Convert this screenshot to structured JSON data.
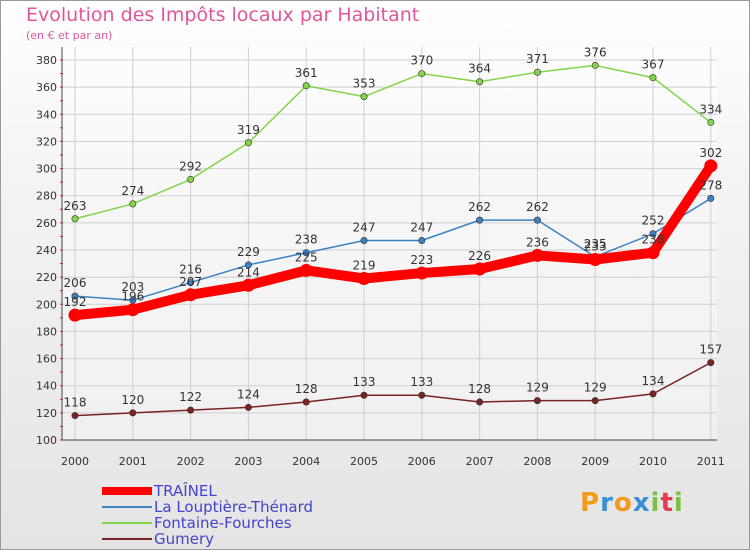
{
  "header": {
    "title": "Evolution des Impôts locaux par Habitant",
    "subtitle": "(en € et par an)"
  },
  "logo": {
    "text": "Proxiti",
    "colors": [
      "#f29a1c",
      "#3b8fd4",
      "#f29a1c",
      "#3b8fd4",
      "#7cc242",
      "#e23d4c",
      "#7cc242"
    ]
  },
  "chart_data": {
    "type": "line",
    "title": "Evolution des Impôts locaux par Habitant",
    "subtitle": "(en € et par an)",
    "xlabel": "",
    "ylabel": "",
    "x": [
      "2000",
      "2001",
      "2002",
      "2003",
      "2004",
      "2005",
      "2006",
      "2007",
      "2008",
      "2009",
      "2010",
      "2011"
    ],
    "ylim": [
      100,
      380
    ],
    "yticks": [
      100,
      120,
      140,
      160,
      180,
      200,
      220,
      240,
      260,
      280,
      300,
      320,
      340,
      360,
      380
    ],
    "grid": true,
    "legend_position": "bottom-left",
    "series": [
      {
        "name": "TRAÎNEL",
        "color": "#ff0000",
        "values": [
          192,
          196,
          207,
          214,
          225,
          219,
          223,
          226,
          236,
          233,
          238,
          302
        ],
        "labels": [
          "192",
          "196",
          "207",
          "214",
          "225",
          "219",
          "223",
          "226",
          "236",
          "233",
          "238",
          "302"
        ]
      },
      {
        "name": "La Louptière-Thénard",
        "color": "#3b82c4",
        "values": [
          206,
          203,
          216,
          229,
          238,
          247,
          247,
          262,
          262,
          235,
          252,
          278
        ],
        "labels": [
          "206",
          "203",
          "216",
          "229",
          "238",
          "247",
          "247",
          "262",
          "262",
          "235",
          "252",
          "278"
        ]
      },
      {
        "name": "Fontaine-Fourches",
        "color": "#82d44a",
        "values": [
          263,
          274,
          292,
          319,
          361,
          353,
          370,
          364,
          371,
          376,
          367,
          334
        ],
        "labels": [
          "263",
          "274",
          "292",
          "319",
          "361",
          "353",
          "370",
          "364",
          "371",
          "376",
          "367",
          "334"
        ]
      },
      {
        "name": "Gumery",
        "color": "#7a2323",
        "values": [
          118,
          120,
          122,
          124,
          128,
          133,
          133,
          128,
          129,
          129,
          134,
          157
        ],
        "labels": [
          "118",
          "120",
          "122",
          "124",
          "128",
          "133",
          "133",
          "128",
          "129",
          "129",
          "134",
          "157"
        ]
      }
    ]
  }
}
